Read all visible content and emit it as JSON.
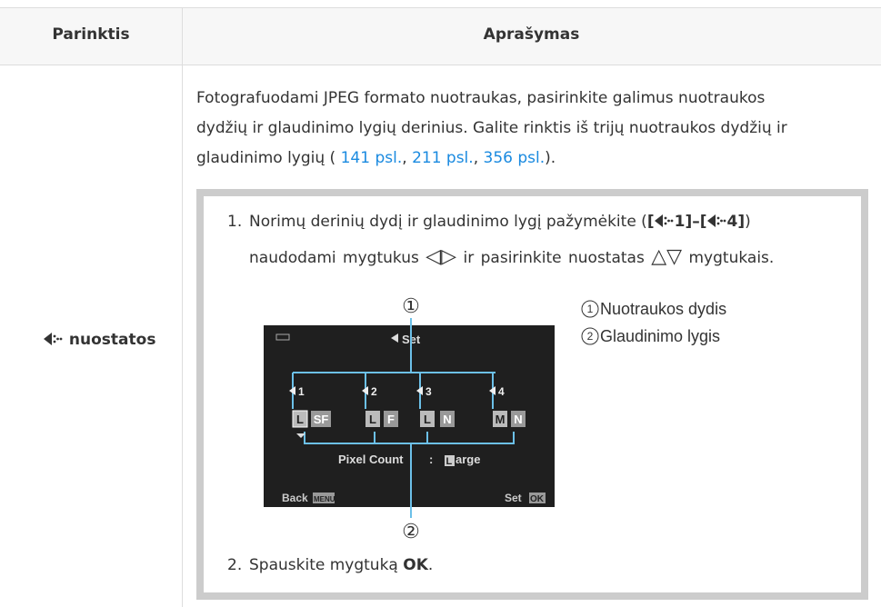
{
  "table": {
    "header": [
      "Parinktis",
      "Aprašymas"
    ],
    "option": "nuostatos",
    "intro": [
      "Fotografuodami JPEG formato nuotraukas, pasirinkite galimus nuotraukos",
      "dydžių ir glaudinimo lygių derinius. Galite rinktis iš trijų nuotraukos dydžių ir",
      "glaudinimo lygių ( ",
      "141 psl.",
      ", ",
      "211 psl.",
      ", ",
      "356 psl.",
      ")."
    ],
    "step1": {
      "number": "1.",
      "line1": [
        "Norimų derinių dydį ir glaudinimo lygį pažymėkite (",
        "[",
        "1]",
        "–[",
        "4]",
        ")"
      ],
      "line2": [
        "naudodami mygtukus",
        "◁▷",
        "ir pasirinkite nuostatas",
        "△▽",
        "mygtukais."
      ]
    },
    "screen": {
      "markers": [
        "①",
        "②"
      ],
      "title": "Set",
      "slots": [
        "1",
        "2",
        "3",
        "4"
      ],
      "options": [
        "L",
        "SF",
        "L",
        "F",
        "L",
        "N",
        "M",
        "N"
      ],
      "status": [
        "Pixel Count",
        ":",
        "L",
        "arge"
      ],
      "back": "Back",
      "menu": "MENU",
      "set": "Set",
      "ok": "OK"
    },
    "legend": [
      {
        "number": "1",
        "label": "Nuotraukos dydis"
      },
      {
        "number": "2",
        "label": "Glaudinimo lygis"
      }
    ],
    "step2": {
      "number": "2.",
      "text": "Spauskite mygtuką",
      "key": "OK",
      "end": "."
    }
  }
}
